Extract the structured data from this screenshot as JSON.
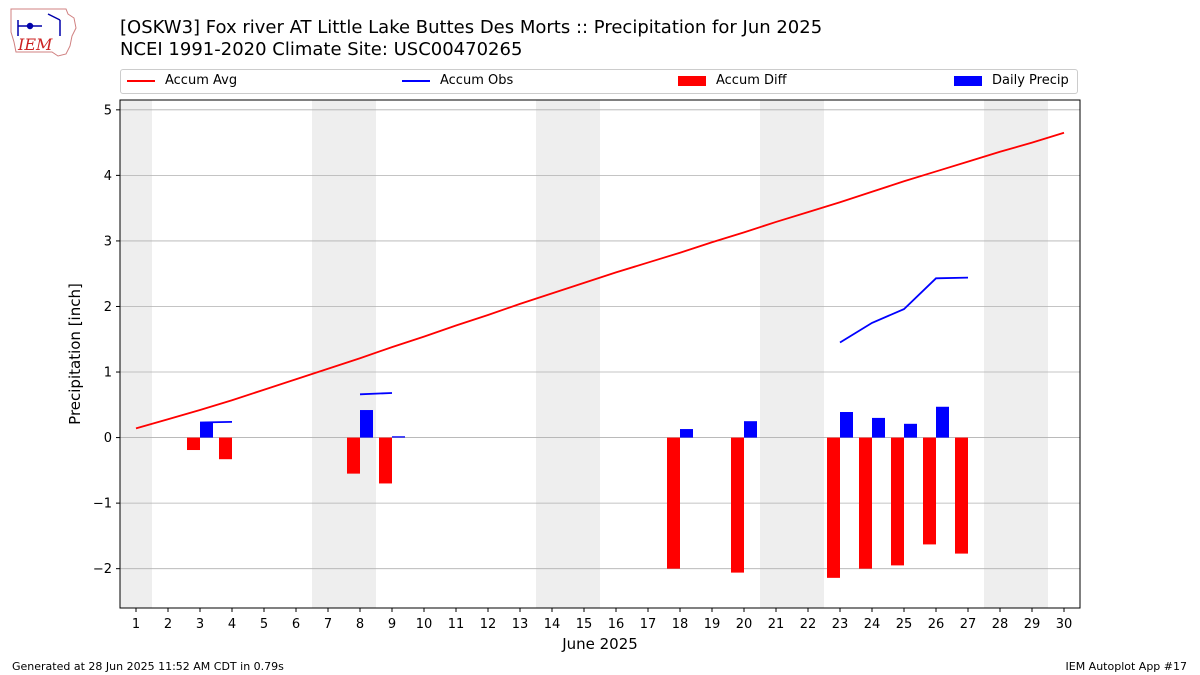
{
  "header": {
    "title_line1": "[OSKW3] Fox river  AT Little Lake Buttes Des Morts :: Precipitation for Jun 2025",
    "title_line2": "NCEI 1991-2020 Climate Site: USC00470265"
  },
  "logo": {
    "text": "IEM"
  },
  "footer": {
    "left": "Generated at 28 Jun 2025 11:52 AM CDT in 0.79s",
    "right": "IEM Autoplot App #17"
  },
  "colors": {
    "avg": "#ff0000",
    "obs": "#0000ff",
    "diff": "#ff0000",
    "daily": "#0000ff",
    "weekend": "#eeeeee",
    "grid": "#b0b0b0"
  },
  "legend": [
    {
      "label": "Accum Avg",
      "kind": "line",
      "color": "#ff0000"
    },
    {
      "label": "Accum Obs",
      "kind": "line",
      "color": "#0000ff"
    },
    {
      "label": "Accum Diff",
      "kind": "rect",
      "color": "#ff0000"
    },
    {
      "label": "Daily Precip",
      "kind": "rect",
      "color": "#0000ff"
    }
  ],
  "chart_data": {
    "type": "bar",
    "title": "[OSKW3] Fox river  AT Little Lake Buttes Des Morts :: Precipitation for Jun 2025",
    "subtitle": "NCEI 1991-2020 Climate Site: USC00470265",
    "xlabel": "June 2025",
    "ylabel": "Precipitation [inch]",
    "x": [
      1,
      2,
      3,
      4,
      5,
      6,
      7,
      8,
      9,
      10,
      11,
      12,
      13,
      14,
      15,
      16,
      17,
      18,
      19,
      20,
      21,
      22,
      23,
      24,
      25,
      26,
      27,
      28,
      29,
      30
    ],
    "ylim": [
      -2.6,
      5.15
    ],
    "yticks": [
      -2,
      -1,
      0,
      1,
      2,
      3,
      4,
      5
    ],
    "grid": "horizontal",
    "legend_position": "top",
    "weekend_shading_days": [
      1,
      7,
      8,
      14,
      15,
      21,
      22,
      28,
      29
    ],
    "series": [
      {
        "name": "Accum Avg",
        "kind": "line",
        "values": [
          0.14,
          0.28,
          0.42,
          0.57,
          0.73,
          0.89,
          1.05,
          1.21,
          1.38,
          1.54,
          1.71,
          1.87,
          2.04,
          2.2,
          2.36,
          2.52,
          2.67,
          2.82,
          2.98,
          3.13,
          3.29,
          3.44,
          3.59,
          3.75,
          3.91,
          4.06,
          4.21,
          4.36,
          4.5,
          4.65
        ]
      },
      {
        "name": "Accum Obs",
        "kind": "line",
        "values": [
          null,
          null,
          0.23,
          0.24,
          null,
          null,
          null,
          0.66,
          0.68,
          null,
          null,
          null,
          null,
          null,
          null,
          null,
          null,
          null,
          null,
          null,
          null,
          null,
          1.45,
          1.75,
          1.96,
          2.43,
          2.44,
          null,
          null,
          null
        ]
      },
      {
        "name": "Accum Diff",
        "kind": "bar",
        "values": [
          null,
          null,
          -0.19,
          -0.33,
          null,
          null,
          null,
          -0.55,
          -0.7,
          null,
          null,
          null,
          null,
          null,
          null,
          null,
          null,
          -2.0,
          null,
          -2.06,
          null,
          null,
          -2.14,
          -2.0,
          -1.95,
          -1.63,
          -1.77,
          null,
          null,
          null
        ]
      },
      {
        "name": "Daily Precip",
        "kind": "bar",
        "values": [
          null,
          null,
          0.23,
          null,
          null,
          null,
          null,
          0.42,
          0.02,
          null,
          null,
          null,
          null,
          null,
          null,
          null,
          null,
          0.13,
          null,
          0.25,
          null,
          null,
          0.39,
          0.3,
          0.21,
          0.47,
          null,
          null,
          null,
          null
        ]
      }
    ]
  }
}
